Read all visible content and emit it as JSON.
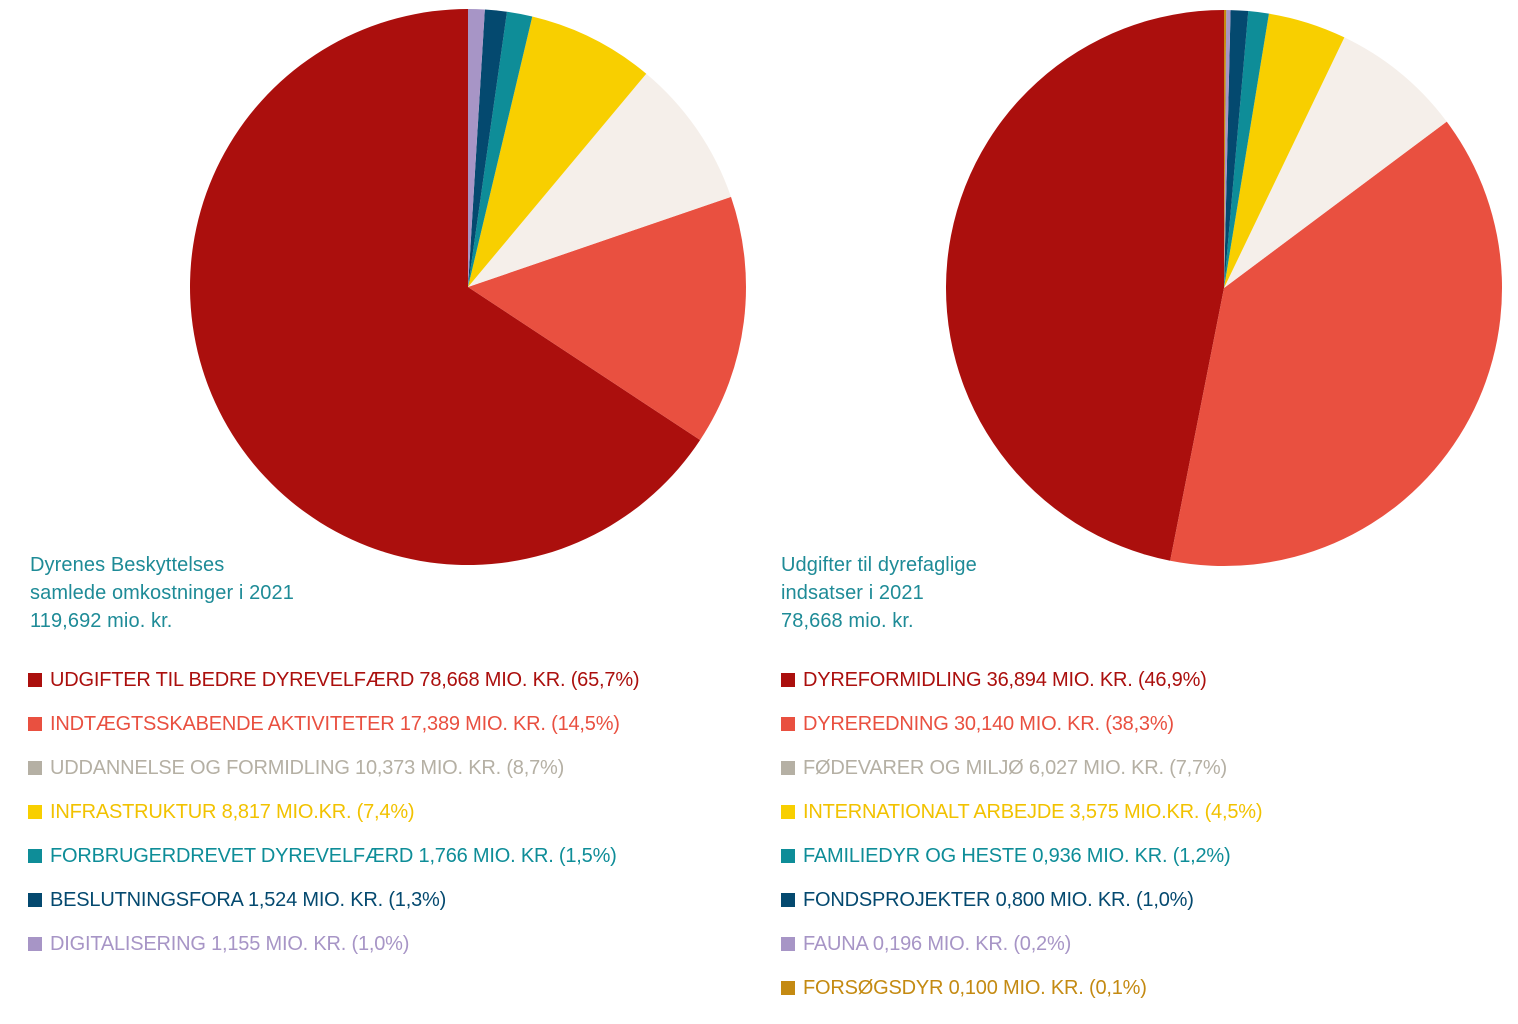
{
  "chart_data": [
    {
      "type": "pie",
      "title_lines": [
        "Dyrenes Beskyttelses",
        "samlede omkostninger i 2021",
        "119,692 mio. kr."
      ],
      "slices": [
        {
          "label": "UDGIFTER TIL BEDRE DYREVELFÆRD 78,668 MIO. KR. (65,7%)",
          "value": 78.668,
          "percent": 65.7,
          "color": "#ab0f0d",
          "text_color": "#ab0f0d"
        },
        {
          "label": "INDTÆGTSSKABENDE AKTIVITETER 17,389 MIO. KR. (14,5%)",
          "value": 17.389,
          "percent": 14.5,
          "color": "#e95040",
          "text_color": "#e95040"
        },
        {
          "label": "UDDANNELSE OG FORMIDLING 10,373 MIO. KR. (8,7%)",
          "value": 10.373,
          "percent": 8.7,
          "color": "#f5efea",
          "swatch_color": "#b5b0a4",
          "text_color": "#b5b0a4"
        },
        {
          "label": "INFRASTRUKTUR 8,817 MIO.KR. (7,4%)",
          "value": 8.817,
          "percent": 7.4,
          "color": "#f8cf00",
          "text_color": "#f2c200"
        },
        {
          "label": "FORBRUGERDREVET DYREVELFÆRD 1,766 MIO. KR. (1,5%)",
          "value": 1.766,
          "percent": 1.5,
          "color": "#0e8d98",
          "text_color": "#0e8d98"
        },
        {
          "label": "BESLUTNINGSFORA 1,524 MIO. KR. (1,3%)",
          "value": 1.524,
          "percent": 1.3,
          "color": "#04496f",
          "text_color": "#04496f"
        },
        {
          "label": "DIGITALISERING 1,155 MIO. KR. (1,0%)",
          "value": 1.155,
          "percent": 1.0,
          "color": "#a795c6",
          "text_color": "#a795c6"
        }
      ]
    },
    {
      "type": "pie",
      "title_lines": [
        "Udgifter til dyrefaglige",
        "indsatser i 2021",
        "78,668 mio. kr."
      ],
      "slices": [
        {
          "label": "DYREFORMIDLING 36,894 MIO. KR. (46,9%)",
          "value": 36.894,
          "percent": 46.9,
          "color": "#ab0f0d",
          "text_color": "#ab0f0d"
        },
        {
          "label": "DYREREDNING 30,140 MIO. KR. (38,3%)",
          "value": 30.14,
          "percent": 38.3,
          "color": "#e95040",
          "text_color": "#e95040"
        },
        {
          "label": "FØDEVARER OG MILJØ 6,027 MIO. KR. (7,7%)",
          "value": 6.027,
          "percent": 7.7,
          "color": "#f5efea",
          "swatch_color": "#b5b0a4",
          "text_color": "#b5b0a4"
        },
        {
          "label": "INTERNATIONALT ARBEJDE 3,575 MIO.KR. (4,5%)",
          "value": 3.575,
          "percent": 4.5,
          "color": "#f8cf00",
          "text_color": "#f2c200"
        },
        {
          "label": "FAMILIEDYR OG HESTE 0,936 MIO. KR. (1,2%)",
          "value": 0.936,
          "percent": 1.2,
          "color": "#0e8d98",
          "text_color": "#0e8d98"
        },
        {
          "label": "FONDSPROJEKTER 0,800 MIO. KR. (1,0%)",
          "value": 0.8,
          "percent": 1.0,
          "color": "#04496f",
          "text_color": "#04496f"
        },
        {
          "label": "FAUNA 0,196 MIO. KR. (0,2%)",
          "value": 0.196,
          "percent": 0.2,
          "color": "#a795c6",
          "text_color": "#a795c6"
        },
        {
          "label": "FORSØGSDYR 0,100 MIO. KR. (0,1%)",
          "value": 0.1,
          "percent": 0.1,
          "color": "#c48a12",
          "text_color": "#c48a12"
        }
      ]
    }
  ]
}
